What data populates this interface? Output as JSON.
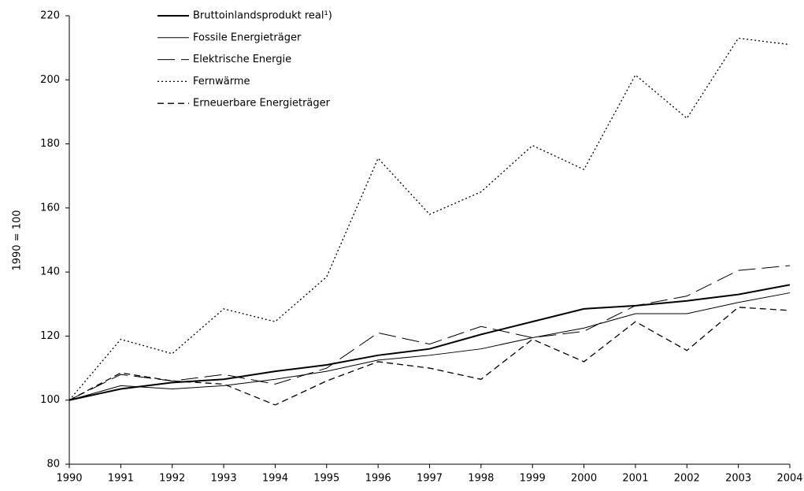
{
  "chart_data": {
    "type": "line",
    "ylabel": "1990 = 100",
    "x": [
      1990,
      1991,
      1992,
      1993,
      1994,
      1995,
      1996,
      1997,
      1998,
      1999,
      2000,
      2001,
      2002,
      2003,
      2004
    ],
    "xlim": [
      1990,
      2004
    ],
    "xticks": [
      1990,
      1991,
      1992,
      1993,
      1994,
      1995,
      1996,
      1997,
      1998,
      1999,
      2000,
      2001,
      2002,
      2003,
      2004
    ],
    "ylim": [
      80,
      220
    ],
    "yticks": [
      80,
      100,
      120,
      140,
      160,
      180,
      200,
      220
    ],
    "grid": false,
    "legend": "upper left",
    "series": [
      {
        "name": "Bruttoinlandsprodukt real¹)",
        "color": "#000000",
        "style": "solid",
        "width": 2,
        "values": [
          100,
          103.5,
          105.5,
          106.5,
          109,
          111,
          114,
          116,
          120.5,
          124.5,
          128.5,
          129.5,
          131,
          133,
          136
        ]
      },
      {
        "name": "Fossile Energieträger",
        "color": "#000000",
        "style": "solid",
        "width": 1,
        "values": [
          100,
          104.5,
          103.5,
          104.5,
          106.5,
          109,
          112.5,
          114,
          116,
          119.5,
          122.5,
          127,
          127,
          130.5,
          133.5
        ]
      },
      {
        "name": "Elektrische Energie",
        "color": "#000000",
        "style": "longdash",
        "width": 1,
        "values": [
          100,
          108,
          106,
          108,
          105,
          110,
          121,
          117.5,
          123,
          119.5,
          121.5,
          129.5,
          132.5,
          140.5,
          142
        ]
      },
      {
        "name": "Fernwärme",
        "color": "#000000",
        "style": "dotted",
        "width": 1.3,
        "values": [
          100,
          119,
          114.5,
          128.5,
          124.5,
          138.5,
          175.5,
          158,
          165,
          179.5,
          172,
          201.5,
          188,
          213,
          211
        ]
      },
      {
        "name": "Erneuerbare Energieträger",
        "color": "#000000",
        "style": "dashed",
        "width": 1.3,
        "values": [
          100,
          108.5,
          106,
          105,
          98.5,
          106,
          112,
          110,
          106.5,
          119,
          112,
          124.5,
          115.5,
          129,
          128
        ]
      }
    ]
  }
}
